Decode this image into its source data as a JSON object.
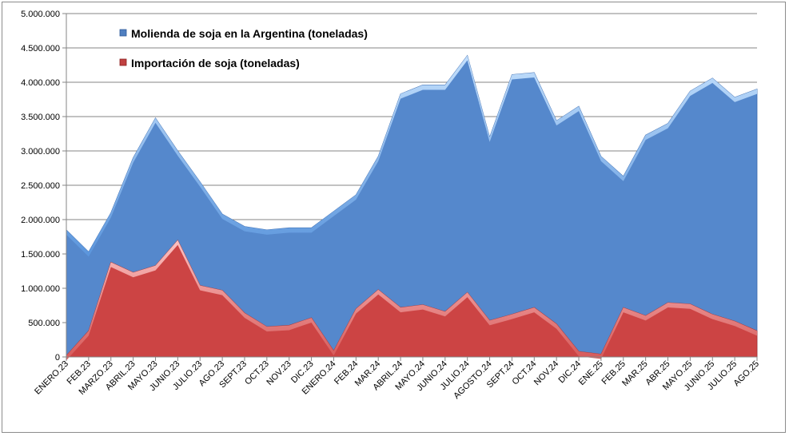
{
  "chart_data": {
    "type": "area",
    "title": "",
    "xlabel": "",
    "ylabel": "",
    "ylim": [
      0,
      5000000
    ],
    "y_ticks": [
      0,
      500000,
      1000000,
      1500000,
      2000000,
      2500000,
      3000000,
      3500000,
      4000000,
      4500000,
      5000000
    ],
    "y_tick_labels": [
      "0",
      "500.000",
      "1.000.000",
      "1.500.000",
      "2.000.000",
      "2.500.000",
      "3.000.000",
      "3.500.000",
      "4.000.000",
      "4.500.000",
      "5.000.000"
    ],
    "grid": true,
    "legend_position": "top-left",
    "categories": [
      "ENERO.23",
      "FEB.23",
      "MARZO.23",
      "ABRIL.23",
      "MAYO.23",
      "JUNIO.23",
      "JULIO.23",
      "AGO.23",
      "SEPT.23",
      "OCT.23",
      "NOV.23",
      "DIC.23",
      "ENERO.24",
      "FEB.24",
      "MAR.24",
      "ABRIL.24",
      "MAYO.24",
      "JUNIO.24",
      "JULIO.24",
      "AGOSTO.24",
      "SEPT.24",
      "OCT.24",
      "NOV.24",
      "DIC.24",
      "ENE.25",
      "FEB.25",
      "MAR.25",
      "ABR.25",
      "MAYO.25",
      "JUNIO.25",
      "JULIO.25",
      "AGO.25"
    ],
    "series": [
      {
        "name": "Molienda de soja en la Argentina (toneladas)",
        "color": "#5588cc",
        "values": [
          1850000,
          1530000,
          2100000,
          2900000,
          3480000,
          3000000,
          2550000,
          2080000,
          1900000,
          1850000,
          1880000,
          1880000,
          2120000,
          2360000,
          2920000,
          3830000,
          3960000,
          3960000,
          4390000,
          3200000,
          4110000,
          4140000,
          3440000,
          3650000,
          2920000,
          2630000,
          3230000,
          3400000,
          3870000,
          4060000,
          3780000,
          3900000
        ]
      },
      {
        "name": "Importación de soja (toneladas)",
        "color": "#cc4444",
        "values": [
          20000,
          380000,
          1380000,
          1230000,
          1330000,
          1700000,
          1040000,
          970000,
          640000,
          440000,
          460000,
          570000,
          90000,
          700000,
          980000,
          720000,
          760000,
          660000,
          940000,
          530000,
          620000,
          720000,
          480000,
          80000,
          40000,
          720000,
          600000,
          790000,
          770000,
          620000,
          520000,
          380000
        ]
      }
    ]
  }
}
